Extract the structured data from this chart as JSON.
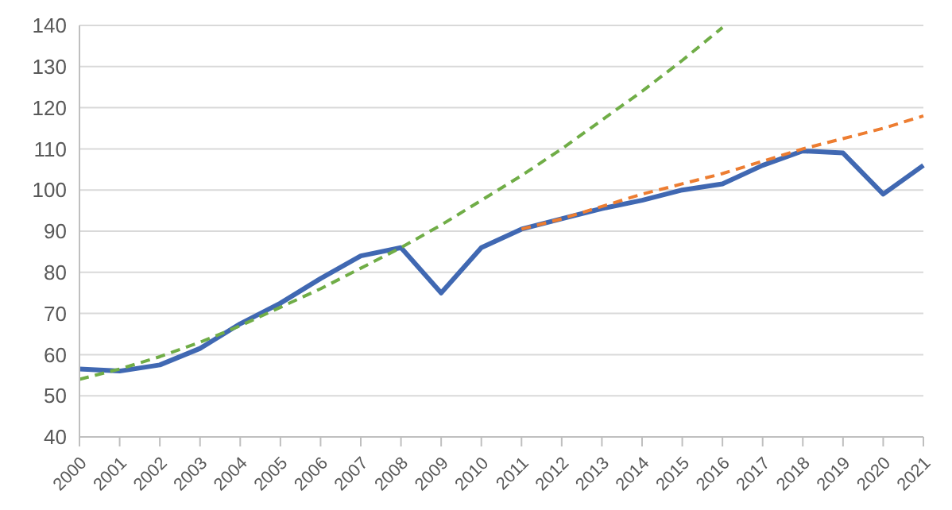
{
  "chart_data": {
    "type": "line",
    "categories": [
      "2000",
      "2001",
      "2002",
      "2003",
      "2004",
      "2005",
      "2006",
      "2007",
      "2008",
      "2009",
      "2010",
      "2011",
      "2012",
      "2013",
      "2014",
      "2015",
      "2016",
      "2017",
      "2018",
      "2019",
      "2020",
      "2021"
    ],
    "series": [
      {
        "color": "#4068b2",
        "values": [
          56.5,
          56,
          57.5,
          61.5,
          67.5,
          72.5,
          78.5,
          84,
          86,
          75,
          86,
          90.5,
          93,
          95.5,
          97.5,
          100,
          101.5,
          106,
          109.5,
          109,
          99,
          106
        ]
      },
      {
        "color": "#70ad47",
        "line_style": "dashed",
        "values": [
          54,
          56.5,
          59.5,
          63,
          67,
          71.5,
          76,
          81,
          86,
          91.5,
          97.5,
          103.5,
          110,
          117,
          124,
          131.5,
          139.5,
          null,
          null,
          null,
          null,
          null
        ]
      },
      {
        "color": "#ed7d31",
        "line_style": "dashed",
        "values": [
          null,
          null,
          null,
          null,
          null,
          null,
          null,
          null,
          null,
          null,
          null,
          90.5,
          93,
          96,
          99,
          101.5,
          104,
          107,
          110,
          112.5,
          115,
          118
        ]
      }
    ],
    "ylim": [
      40,
      140
    ],
    "yticks": [
      40,
      50,
      60,
      70,
      80,
      90,
      100,
      110,
      120,
      130,
      140
    ],
    "grid": "y",
    "marker": "none"
  }
}
